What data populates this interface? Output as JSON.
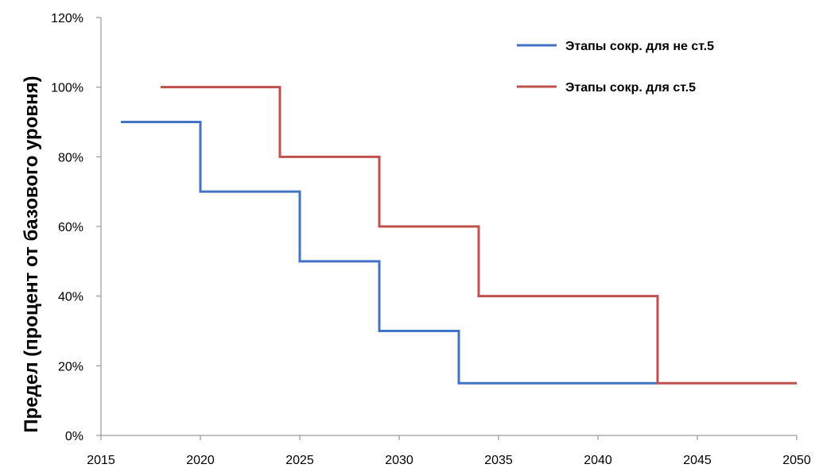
{
  "chart_data": {
    "type": "line",
    "step": "post",
    "ylabel": "Предел (процент от базового уровня)",
    "xlim": [
      2015,
      2050
    ],
    "ylim": [
      0,
      120
    ],
    "x_ticks": [
      "2015",
      "2020",
      "2025",
      "2030",
      "2035",
      "2040",
      "2045",
      "2050"
    ],
    "y_ticks": [
      "0%",
      "20%",
      "40%",
      "60%",
      "80%",
      "100%",
      "120%"
    ],
    "y_tick_values": [
      0,
      20,
      40,
      60,
      80,
      100,
      120
    ],
    "x_tick_values": [
      2015,
      2020,
      2025,
      2030,
      2035,
      2040,
      2045,
      2050
    ],
    "grid": false,
    "legend_position": "top-right",
    "series": [
      {
        "name": "Этапы сокр. для не ст.5",
        "color": "#4472C4",
        "x": [
          2016,
          2020,
          2025,
          2029,
          2033,
          2043
        ],
        "y": [
          90,
          70,
          50,
          30,
          15,
          15
        ]
      },
      {
        "name": "Этапы сокр. для ст.5",
        "color": "#C0504D",
        "x": [
          2018,
          2024,
          2029,
          2034,
          2043,
          2050
        ],
        "y": [
          100,
          80,
          60,
          40,
          15,
          15
        ]
      }
    ]
  }
}
